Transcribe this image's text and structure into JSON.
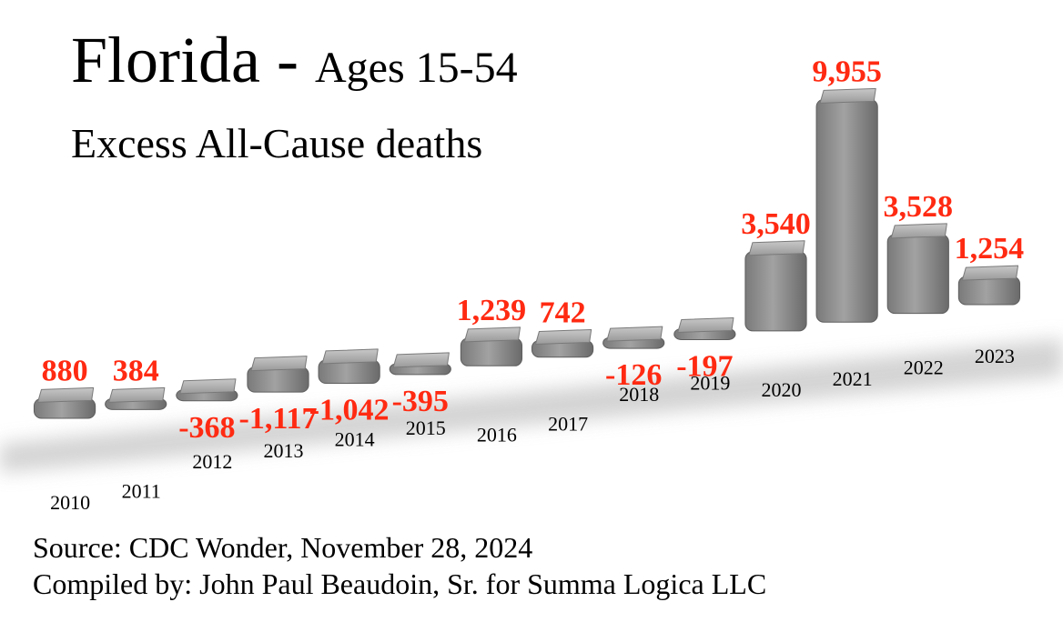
{
  "title": {
    "main": "Florida - ",
    "sub": "Ages 15-54"
  },
  "subtitle": "Excess All-Cause deaths",
  "footer": {
    "source": "Source:  CDC Wonder, November 28, 2024",
    "compiled": "Compiled by:  John Paul Beaudoin, Sr. for Summa Logica LLC"
  },
  "colors": {
    "bar": "#8c8c8c",
    "value_label": "#ff2a12",
    "text": "#000000"
  },
  "chart_data": {
    "type": "bar",
    "title": "Florida - Ages 15-54",
    "subtitle": "Excess All-Cause deaths",
    "xlabel": "",
    "ylabel": "",
    "categories": [
      "2010",
      "2011",
      "2012",
      "2013",
      "2014",
      "2015",
      "2016",
      "2017",
      "2018",
      "2019",
      "2020",
      "2021",
      "2022",
      "2023"
    ],
    "values": [
      880,
      384,
      -368,
      -1117,
      -1042,
      -395,
      1239,
      742,
      -126,
      -197,
      3540,
      9955,
      3528,
      1254
    ],
    "value_labels": [
      "880",
      "384",
      "-368",
      "-1,117",
      "-1,042",
      "-395",
      "1,239",
      "742",
      "-126",
      "-197",
      "3,540",
      "9,955",
      "3,528",
      "1,254"
    ],
    "grid": false,
    "legend": "none"
  }
}
